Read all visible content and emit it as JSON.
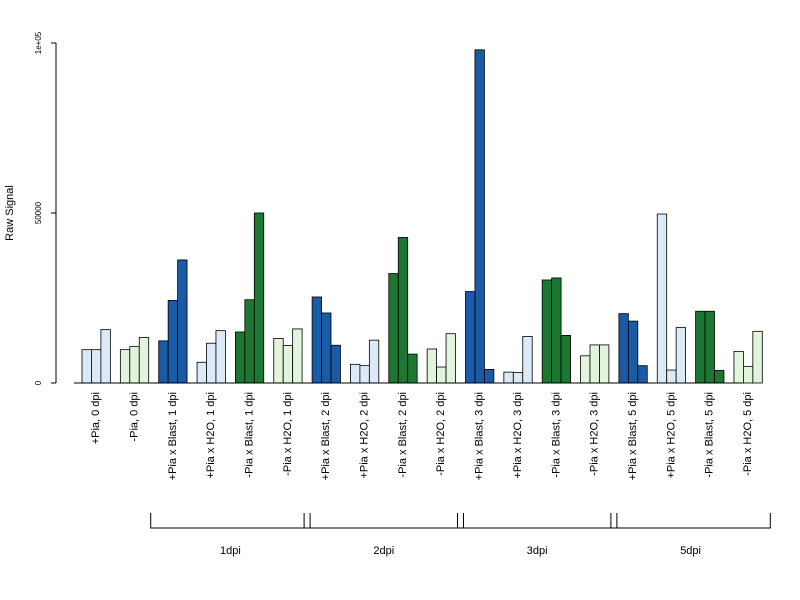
{
  "chart_data": {
    "type": "bar",
    "ylabel": "Raw Signal",
    "ylim": [
      0,
      100000
    ],
    "y_ticks": [
      0,
      50000,
      100000
    ],
    "y_tick_labels": [
      "0",
      "50000",
      "1e+05"
    ],
    "categories": [
      "+Pia, 0 dpi",
      "-Pia, 0 dpi",
      "+Pia x Blast, 1 dpi",
      "+Pia x H2O, 1 dpi",
      "-Pia x Blast, 1 dpi",
      "-Pia x H2O, 1 dpi",
      "+Pia x Blast, 2 dpi",
      "+Pia x H2O, 2 dpi",
      "-Pia x Blast, 2 dpi",
      "-Pia x H2O, 2 dpi",
      "+Pia x Blast, 3 dpi",
      "+Pia x H2O, 3 dpi",
      "-Pia x Blast, 3 dpi",
      "-Pia x H2O, 3 dpi",
      "+Pia x Blast, 5 dpi",
      "+Pia x H2O, 5 dpi",
      "-Pia x Blast, 5 dpi",
      "-Pia x H2O, 5 dpi"
    ],
    "values": [
      [
        9800,
        9800,
        15700
      ],
      [
        9800,
        10700,
        13400
      ],
      [
        12400,
        24300,
        36200
      ],
      [
        6100,
        11700,
        15400
      ],
      [
        15000,
        24500,
        50000
      ],
      [
        13100,
        11000,
        15900
      ],
      [
        25300,
        20600,
        11100
      ],
      [
        5500,
        5100,
        12600
      ],
      [
        32200,
        42800,
        8500
      ],
      [
        10000,
        4700,
        14500
      ],
      [
        26900,
        98000,
        4000
      ],
      [
        3200,
        3100,
        13700
      ],
      [
        30300,
        30900,
        14000
      ],
      [
        8000,
        11200,
        11200
      ],
      [
        20400,
        18200,
        5100
      ],
      [
        49700,
        3800,
        16300
      ],
      [
        21100,
        21100,
        3700
      ],
      [
        9300,
        4900,
        15200
      ]
    ],
    "fill_colors": [
      "#dce9f7",
      "#e2f5dc",
      "#1a5aa6",
      "#dce9f7",
      "#1d7733",
      "#e2f5dc",
      "#1a5aa6",
      "#dce9f7",
      "#1d7733",
      "#e2f5dc",
      "#1a5aa6",
      "#dce9f7",
      "#1d7733",
      "#e2f5dc",
      "#1a5aa6",
      "#dce9f7",
      "#1d7733",
      "#e2f5dc"
    ],
    "group_brackets": [
      {
        "label": "1dpi",
        "from_category": 2,
        "to_category": 5
      },
      {
        "label": "2dpi",
        "from_category": 6,
        "to_category": 9
      },
      {
        "label": "3dpi",
        "from_category": 10,
        "to_category": 13
      },
      {
        "label": "5dpi",
        "from_category": 14,
        "to_category": 17
      }
    ],
    "grid": false,
    "legend": "none"
  }
}
